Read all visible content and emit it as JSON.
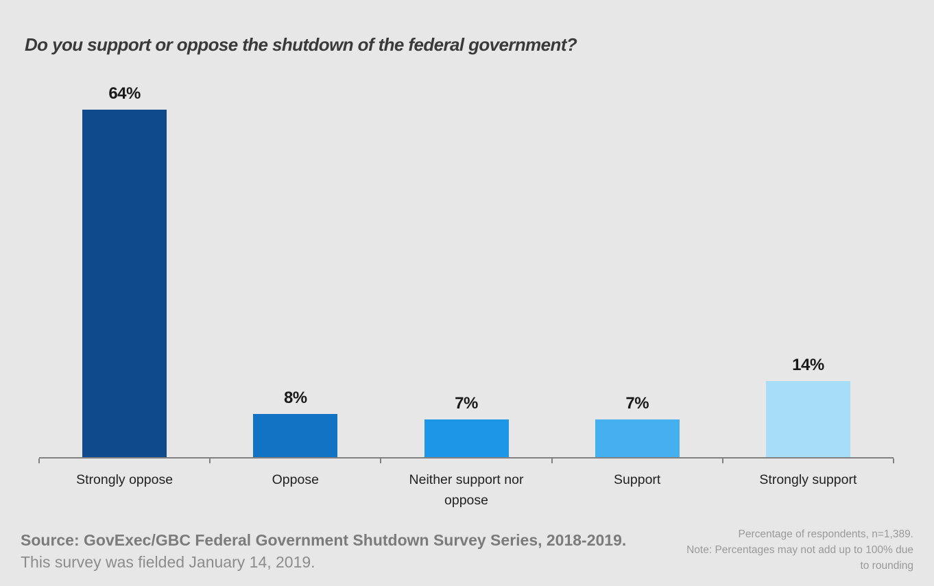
{
  "chart_data": {
    "type": "bar",
    "title": "Do you support or oppose the shutdown of the federal government?",
    "categories": [
      "Strongly oppose",
      "Oppose",
      "Neither support nor oppose",
      "Support",
      "Strongly support"
    ],
    "values": [
      64,
      8,
      7,
      7,
      14
    ],
    "value_labels": [
      "64%",
      "8%",
      "7%",
      "7%",
      "14%"
    ],
    "bar_colors": [
      "#0e4a8c",
      "#1273c4",
      "#1e96e8",
      "#45b0f0",
      "#a8ddf8"
    ],
    "xlabel": "",
    "ylabel": "",
    "ylim": [
      0,
      70
    ],
    "grid": false,
    "legend": "none",
    "axis_color": "#808080",
    "background_color": "#e7e7e7",
    "tick_count": 6
  },
  "footer": {
    "source_bold": "Source: GovExec/GBC Federal Government Shutdown Survey Series, 2018-2019.",
    "source_regular": "This survey was fielded January 14, 2019.",
    "note_lines": [
      "Percentage of respondents, n=1,389.",
      "Note: Percentages may not add up to 100% due to rounding"
    ]
  }
}
